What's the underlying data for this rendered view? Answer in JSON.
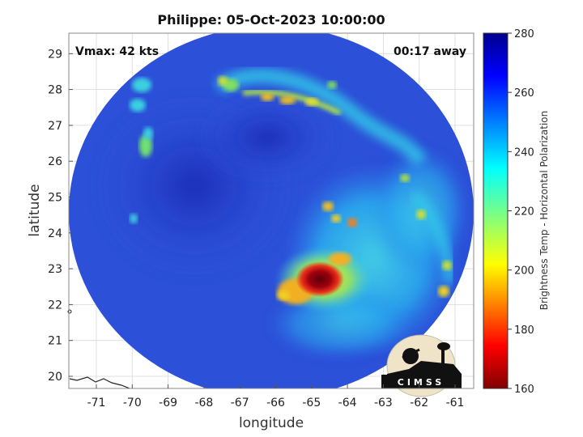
{
  "figure": {
    "title": "Philippe: 05-Oct-2023 10:00:00",
    "vmax_text": "Vmax: 42 kts",
    "time_offset_text": "00:17 away",
    "xlabel": "longitude",
    "ylabel": "latitude",
    "x_ticks": [
      "-71",
      "-70",
      "-69",
      "-68",
      "-67",
      "-66",
      "-65",
      "-64",
      "-63",
      "-62",
      "-61"
    ],
    "y_ticks": [
      "20",
      "21",
      "22",
      "23",
      "24",
      "25",
      "26",
      "27",
      "28",
      "29"
    ]
  },
  "colorbar": {
    "label": "Brightness Temp - Horizontal Polarization",
    "ticks": [
      "160",
      "180",
      "200",
      "220",
      "240",
      "260",
      "280"
    ]
  },
  "logo": {
    "text": "CIMSS"
  },
  "colors": {
    "background": "#2c50d8",
    "deep_blue": "#1f2fc0",
    "cyan": "#33c3e8",
    "yellow": "#f0e020",
    "red": "#c8101a",
    "dark_red": "#6a0008"
  }
}
